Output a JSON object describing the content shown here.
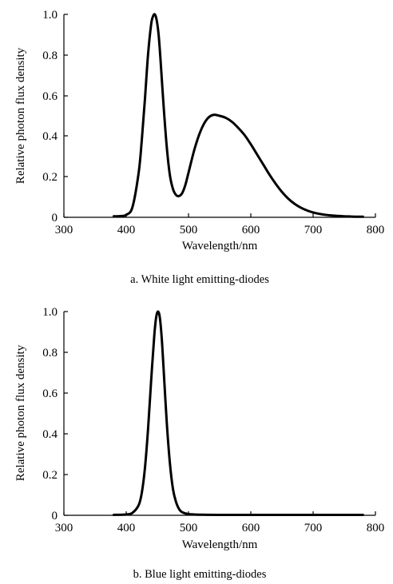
{
  "chart_data": [
    {
      "type": "line",
      "caption": "a. White light emitting-diodes",
      "xlabel": "Wavelength/nm",
      "ylabel": "Relative photon flux density",
      "xlim": [
        300,
        800
      ],
      "ylim": [
        0,
        1.0
      ],
      "x_ticks": [
        "300",
        "400",
        "500",
        "600",
        "700",
        "800"
      ],
      "y_ticks": [
        "0",
        "0.2",
        "0.4",
        "0.6",
        "0.8",
        "1.0"
      ],
      "grid": false,
      "series": [
        {
          "x": [
            380,
            390,
            400,
            410,
            420,
            425,
            430,
            435,
            440,
            443,
            446,
            449,
            452,
            455,
            460,
            465,
            470,
            475,
            480,
            485,
            490,
            495,
            500,
            510,
            520,
            530,
            540,
            550,
            560,
            570,
            580,
            590,
            600,
            610,
            620,
            630,
            640,
            650,
            660,
            670,
            680,
            690,
            700,
            710,
            720,
            730,
            740,
            750,
            760,
            770,
            780
          ],
          "y": [
            0.005,
            0.006,
            0.012,
            0.05,
            0.22,
            0.38,
            0.58,
            0.8,
            0.95,
            0.99,
            1.0,
            0.97,
            0.9,
            0.78,
            0.55,
            0.35,
            0.21,
            0.14,
            0.11,
            0.105,
            0.12,
            0.16,
            0.22,
            0.34,
            0.43,
            0.485,
            0.505,
            0.5,
            0.49,
            0.47,
            0.44,
            0.405,
            0.36,
            0.31,
            0.26,
            0.21,
            0.165,
            0.125,
            0.092,
            0.067,
            0.048,
            0.034,
            0.024,
            0.017,
            0.012,
            0.009,
            0.007,
            0.005,
            0.004,
            0.003,
            0.003
          ]
        }
      ]
    },
    {
      "type": "line",
      "caption": "b. Blue light emitting-diodes",
      "xlabel": "Wavelength/nm",
      "ylabel": "Relative photon flux density",
      "xlim": [
        300,
        800
      ],
      "ylim": [
        0,
        1.0
      ],
      "x_ticks": [
        "300",
        "400",
        "500",
        "600",
        "700",
        "800"
      ],
      "y_ticks": [
        "0",
        "0.2",
        "0.4",
        "0.6",
        "0.8",
        "1.0"
      ],
      "grid": false,
      "series": [
        {
          "x": [
            380,
            400,
            410,
            420,
            425,
            430,
            435,
            440,
            445,
            448,
            451,
            454,
            457,
            460,
            465,
            470,
            475,
            480,
            485,
            490,
            500,
            520,
            550,
            600,
            650,
            700,
            750,
            780
          ],
          "y": [
            0.002,
            0.004,
            0.012,
            0.05,
            0.11,
            0.23,
            0.42,
            0.66,
            0.88,
            0.97,
            1.0,
            0.97,
            0.87,
            0.72,
            0.46,
            0.26,
            0.13,
            0.065,
            0.03,
            0.015,
            0.006,
            0.003,
            0.002,
            0.002,
            0.002,
            0.002,
            0.002,
            0.002
          ]
        }
      ]
    }
  ]
}
